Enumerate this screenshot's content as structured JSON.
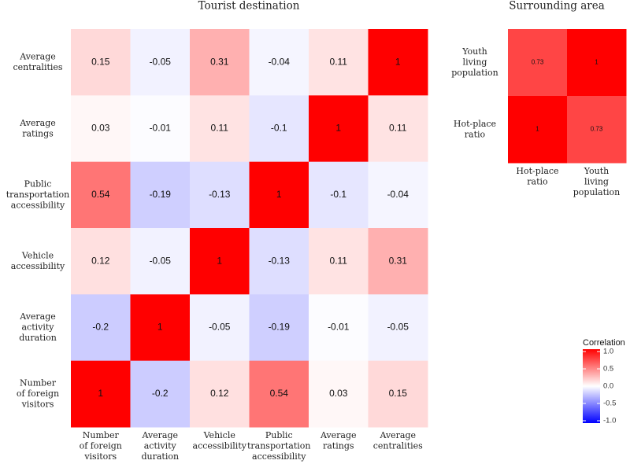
{
  "chart_data": [
    {
      "type": "heatmap",
      "title": "Tourist destination",
      "x_categories": [
        "Number\nof foreign\nvisitors",
        "Average\nactivity\nduration",
        "Vehicle\naccessibility",
        "Public\ntransportation\naccessibility",
        "Average\nratings",
        "Average\ncentralities"
      ],
      "y_categories": [
        "Average\ncentralities",
        "Average\nratings",
        "Public\ntransportation\naccessibility",
        "Vehicle\naccessibility",
        "Average\nactivity\nduration",
        "Number\nof foreign\nvisitors"
      ],
      "values": [
        [
          0.15,
          -0.05,
          0.31,
          -0.04,
          0.11,
          1
        ],
        [
          0.03,
          -0.01,
          0.11,
          -0.1,
          1,
          0.11
        ],
        [
          0.54,
          -0.19,
          -0.13,
          1,
          -0.1,
          -0.04
        ],
        [
          0.12,
          -0.05,
          1,
          -0.13,
          0.11,
          0.31
        ],
        [
          -0.2,
          1,
          -0.05,
          -0.19,
          -0.01,
          -0.05
        ],
        [
          1,
          -0.2,
          0.12,
          0.54,
          0.03,
          0.15
        ]
      ],
      "colorbar": {
        "title": "Correlation",
        "clim": [
          -1,
          1
        ],
        "colors": [
          "#0000ff",
          "#ffffff",
          "#ff0000"
        ],
        "ticks": [
          {
            "value": 1,
            "label": "1.0"
          },
          0.5,
          {
            "value": 0,
            "label": "0.0"
          },
          -0.5,
          {
            "value": -1,
            "label": "-1.0"
          }
        ]
      }
    },
    {
      "type": "heatmap",
      "title": "Surrounding area",
      "x_categories": [
        "Hot-place\nratio",
        "Youth\nliving\npopulation"
      ],
      "y_categories": [
        "Youth\nliving\npopulation",
        "Hot-place\nratio"
      ],
      "values": [
        [
          0.73,
          1
        ],
        [
          1,
          0.73
        ]
      ]
    }
  ]
}
